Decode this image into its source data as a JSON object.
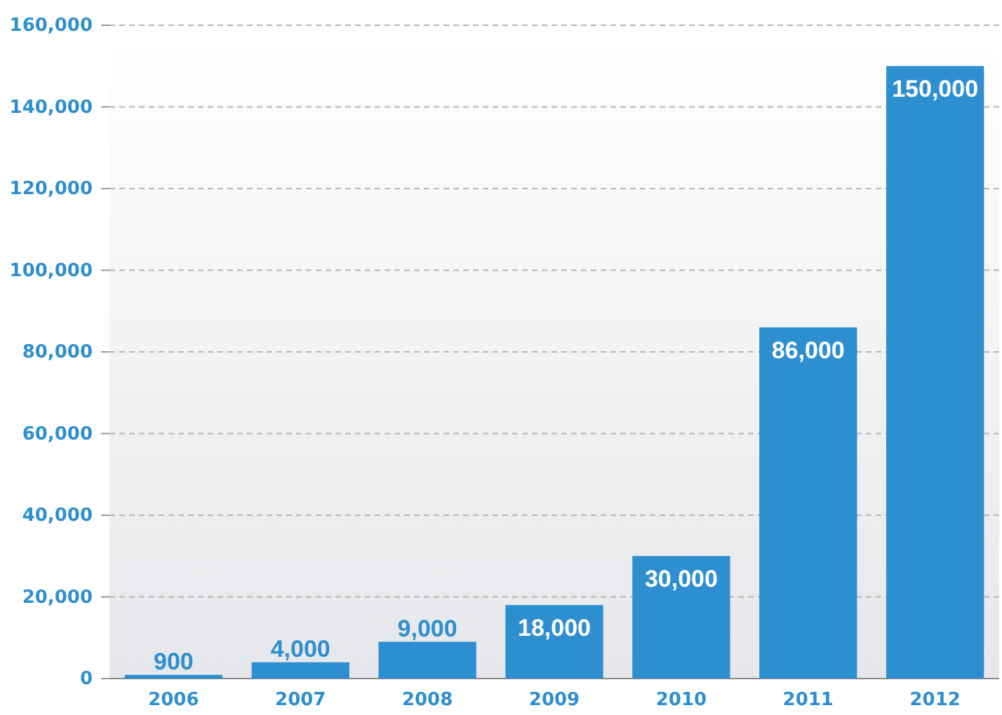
{
  "chart_data": {
    "type": "bar",
    "categories": [
      "2006",
      "2007",
      "2008",
      "2009",
      "2010",
      "2011",
      "2012"
    ],
    "values": [
      900,
      4000,
      9000,
      18000,
      30000,
      86000,
      150000
    ],
    "color": "#2e8fd0",
    "ylim": [
      0,
      160000
    ],
    "yticks": [
      {
        "value": 0,
        "label": "0"
      },
      {
        "value": 20000,
        "label": "20,000"
      },
      {
        "value": 40000,
        "label": "40,000"
      },
      {
        "value": 60000,
        "label": "60,000"
      },
      {
        "value": 80000,
        "label": "80,000"
      },
      {
        "value": 100000,
        "label": "100,000"
      },
      {
        "value": 120000,
        "label": "120,000"
      },
      {
        "value": 140000,
        "label": "140,000"
      },
      {
        "value": 160000,
        "label": "160,000"
      }
    ],
    "grid": "y",
    "value_labels": [
      "900",
      "4,000",
      "9,000",
      "18,000",
      "30,000",
      "86,000",
      "150,000"
    ]
  }
}
